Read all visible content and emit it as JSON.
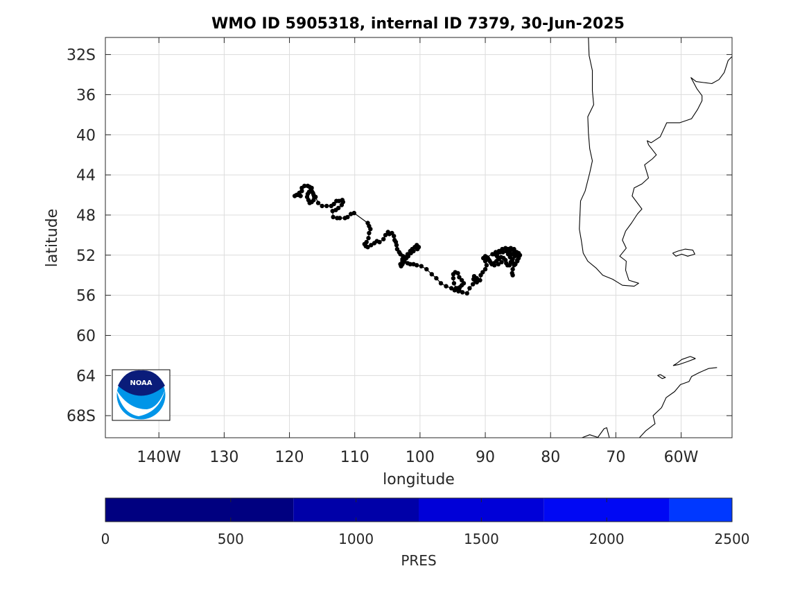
{
  "title": "WMO ID 5905318, internal ID 7379, 30-Jun-2025",
  "map": {
    "xlabel": "longitude",
    "ylabel": "latitude",
    "xlim": [
      -148.2,
      -52.2
    ],
    "ylim": [
      -70.2,
      -30.3
    ],
    "xticks": [
      {
        "value": -140,
        "label": "140W"
      },
      {
        "value": -130,
        "label": "130"
      },
      {
        "value": -120,
        "label": "120"
      },
      {
        "value": -110,
        "label": "110"
      },
      {
        "value": -100,
        "label": "100"
      },
      {
        "value": -90,
        "label": "90"
      },
      {
        "value": -80,
        "label": "80"
      },
      {
        "value": -70,
        "label": "70"
      },
      {
        "value": -60,
        "label": "60W"
      }
    ],
    "yticks": [
      {
        "value": -32,
        "label": "32S"
      },
      {
        "value": -36,
        "label": "36"
      },
      {
        "value": -40,
        "label": "40"
      },
      {
        "value": -44,
        "label": "44"
      },
      {
        "value": -48,
        "label": "48"
      },
      {
        "value": -52,
        "label": "52"
      },
      {
        "value": -56,
        "label": "56"
      },
      {
        "value": -60,
        "label": "60"
      },
      {
        "value": -64,
        "label": "64"
      },
      {
        "value": -68,
        "label": "68S"
      }
    ],
    "grid": true,
    "marker_color": "#000000",
    "logo_text": "NOAA",
    "coastlines": [
      [
        [
          -74.2,
          -30.3
        ],
        [
          -74.1,
          -32.1
        ],
        [
          -73.6,
          -33.6
        ],
        [
          -73.6,
          -35.6
        ],
        [
          -73.4,
          -37.0
        ],
        [
          -74.3,
          -38.2
        ],
        [
          -74.2,
          -39.8
        ],
        [
          -74.0,
          -41.4
        ],
        [
          -73.6,
          -42.6
        ],
        [
          -74.0,
          -43.8
        ],
        [
          -74.7,
          -45.6
        ],
        [
          -75.4,
          -46.6
        ],
        [
          -75.5,
          -48.0
        ],
        [
          -75.6,
          -49.4
        ],
        [
          -75.3,
          -50.5
        ],
        [
          -75.0,
          -51.8
        ],
        [
          -74.3,
          -52.6
        ],
        [
          -73.0,
          -53.3
        ],
        [
          -72.0,
          -54.0
        ],
        [
          -70.5,
          -54.4
        ],
        [
          -69.0,
          -55.0
        ],
        [
          -67.2,
          -55.1
        ],
        [
          -66.5,
          -54.8
        ],
        [
          -68.0,
          -54.5
        ],
        [
          -68.5,
          -53.5
        ],
        [
          -68.4,
          -52.6
        ],
        [
          -69.4,
          -52.1
        ],
        [
          -68.4,
          -51.3
        ],
        [
          -69.0,
          -50.5
        ],
        [
          -68.5,
          -49.6
        ],
        [
          -67.6,
          -48.8
        ],
        [
          -66.7,
          -47.9
        ],
        [
          -66.0,
          -47.4
        ],
        [
          -67.5,
          -46.1
        ],
        [
          -67.2,
          -45.3
        ],
        [
          -66.0,
          -44.9
        ],
        [
          -65.0,
          -44.3
        ],
        [
          -65.6,
          -43.0
        ],
        [
          -64.4,
          -42.4
        ],
        [
          -63.8,
          -42.0
        ],
        [
          -65.0,
          -41.0
        ],
        [
          -65.2,
          -40.6
        ],
        [
          -64.6,
          -40.8
        ],
        [
          -63.2,
          -40.2
        ],
        [
          -62.2,
          -38.8
        ],
        [
          -60.2,
          -38.8
        ],
        [
          -58.4,
          -38.4
        ],
        [
          -57.5,
          -37.5
        ],
        [
          -56.8,
          -36.6
        ],
        [
          -56.8,
          -36.1
        ],
        [
          -57.6,
          -35.4
        ],
        [
          -58.5,
          -34.3
        ],
        [
          -57.7,
          -34.7
        ],
        [
          -55.3,
          -34.9
        ],
        [
          -54.2,
          -34.5
        ],
        [
          -53.4,
          -33.8
        ],
        [
          -52.8,
          -32.6
        ],
        [
          -52.2,
          -32.2
        ]
      ],
      [
        [
          -61.3,
          -51.8
        ],
        [
          -60.5,
          -51.6
        ],
        [
          -59.4,
          -51.4
        ],
        [
          -58.2,
          -51.5
        ],
        [
          -57.9,
          -51.9
        ],
        [
          -59.0,
          -52.1
        ],
        [
          -59.9,
          -51.9
        ],
        [
          -60.8,
          -52.1
        ],
        [
          -61.3,
          -51.8
        ]
      ],
      [
        [
          -54.5,
          -63.2
        ],
        [
          -55.8,
          -63.3
        ],
        [
          -57.2,
          -63.7
        ],
        [
          -58.4,
          -64.1
        ],
        [
          -58.8,
          -64.6
        ],
        [
          -60.1,
          -64.9
        ],
        [
          -61.0,
          -65.6
        ],
        [
          -62.3,
          -66.2
        ],
        [
          -63.0,
          -67.2
        ],
        [
          -64.3,
          -68.0
        ],
        [
          -64.0,
          -68.8
        ],
        [
          -65.4,
          -69.5
        ],
        [
          -66.4,
          -70.2
        ]
      ],
      [
        [
          -57.8,
          -62.3
        ],
        [
          -58.6,
          -62.1
        ],
        [
          -59.9,
          -62.4
        ],
        [
          -60.7,
          -62.8
        ],
        [
          -61.2,
          -63.0
        ],
        [
          -60.3,
          -62.9
        ],
        [
          -59.0,
          -62.6
        ],
        [
          -57.8,
          -62.3
        ]
      ],
      [
        [
          -63.2,
          -63.9
        ],
        [
          -62.4,
          -64.2
        ],
        [
          -62.9,
          -64.3
        ],
        [
          -63.6,
          -64.0
        ],
        [
          -63.2,
          -63.9
        ]
      ],
      [
        [
          -71.0,
          -70.2
        ],
        [
          -71.4,
          -69.2
        ],
        [
          -71.8,
          -69.3
        ],
        [
          -72.8,
          -70.2
        ]
      ],
      [
        [
          -75.2,
          -70.2
        ],
        [
          -74.0,
          -69.9
        ],
        [
          -72.6,
          -70.2
        ]
      ]
    ]
  },
  "track": [
    [
      -119.2,
      -46.1
    ],
    [
      -118.9,
      -46.0
    ],
    [
      -118.6,
      -46.0
    ],
    [
      -118.3,
      -46.1
    ],
    [
      -118.5,
      -45.8
    ],
    [
      -118.1,
      -45.6
    ],
    [
      -118.1,
      -45.3
    ],
    [
      -117.7,
      -45.1
    ],
    [
      -117.2,
      -45.1
    ],
    [
      -116.9,
      -45.2
    ],
    [
      -116.6,
      -45.3
    ],
    [
      -116.6,
      -45.6
    ],
    [
      -116.4,
      -45.8
    ],
    [
      -116.3,
      -46.0
    ],
    [
      -116.2,
      -46.2
    ],
    [
      -116.3,
      -46.5
    ],
    [
      -116.6,
      -46.7
    ],
    [
      -116.9,
      -46.8
    ],
    [
      -117.1,
      -46.5
    ],
    [
      -117.3,
      -46.2
    ],
    [
      -117.2,
      -45.9
    ],
    [
      -117.0,
      -45.7
    ],
    [
      -116.7,
      -45.5
    ],
    [
      -116.0,
      -46.2
    ],
    [
      -115.6,
      -46.8
    ],
    [
      -115.0,
      -47.1
    ],
    [
      -114.3,
      -47.1
    ],
    [
      -113.6,
      -47.1
    ],
    [
      -113.2,
      -46.9
    ],
    [
      -112.8,
      -46.6
    ],
    [
      -112.4,
      -46.6
    ],
    [
      -111.9,
      -46.5
    ],
    [
      -111.8,
      -46.7
    ],
    [
      -112.0,
      -47.0
    ],
    [
      -112.5,
      -47.3
    ],
    [
      -112.9,
      -47.5
    ],
    [
      -113.4,
      -47.6
    ],
    [
      -113.3,
      -48.2
    ],
    [
      -112.7,
      -48.3
    ],
    [
      -112.3,
      -48.3
    ],
    [
      -111.5,
      -48.3
    ],
    [
      -111.1,
      -48.2
    ],
    [
      -110.6,
      -47.9
    ],
    [
      -110.1,
      -47.8
    ],
    [
      -108.0,
      -48.8
    ],
    [
      -107.8,
      -49.1
    ],
    [
      -107.6,
      -49.4
    ],
    [
      -107.8,
      -49.8
    ],
    [
      -107.9,
      -50.3
    ],
    [
      -108.2,
      -50.7
    ],
    [
      -108.5,
      -50.9
    ],
    [
      -108.3,
      -51.1
    ],
    [
      -108.0,
      -51.2
    ],
    [
      -107.5,
      -51.0
    ],
    [
      -107.0,
      -50.8
    ],
    [
      -106.6,
      -50.6
    ],
    [
      -106.2,
      -50.7
    ],
    [
      -105.6,
      -50.4
    ],
    [
      -105.3,
      -50.0
    ],
    [
      -104.9,
      -49.7
    ],
    [
      -104.7,
      -49.9
    ],
    [
      -104.3,
      -49.8
    ],
    [
      -104.0,
      -50.1
    ],
    [
      -103.9,
      -50.5
    ],
    [
      -103.7,
      -50.7
    ],
    [
      -103.6,
      -51.0
    ],
    [
      -103.5,
      -51.4
    ],
    [
      -103.2,
      -51.7
    ],
    [
      -103.0,
      -51.9
    ],
    [
      -102.6,
      -52.1
    ],
    [
      -102.7,
      -52.4
    ],
    [
      -102.4,
      -52.5
    ],
    [
      -102.2,
      -52.2
    ],
    [
      -101.9,
      -51.9
    ],
    [
      -101.5,
      -51.6
    ],
    [
      -101.2,
      -51.4
    ],
    [
      -100.8,
      -51.2
    ],
    [
      -100.5,
      -51.0
    ],
    [
      -100.2,
      -51.2
    ],
    [
      -100.4,
      -51.4
    ],
    [
      -101.0,
      -51.6
    ],
    [
      -101.4,
      -51.8
    ],
    [
      -101.8,
      -52.1
    ],
    [
      -102.1,
      -52.3
    ],
    [
      -102.4,
      -52.6
    ],
    [
      -102.7,
      -52.9
    ],
    [
      -102.9,
      -53.1
    ],
    [
      -103.0,
      -52.9
    ],
    [
      -102.7,
      -52.6
    ],
    [
      -102.5,
      -52.7
    ],
    [
      -101.9,
      -52.8
    ],
    [
      -101.5,
      -52.9
    ],
    [
      -101.0,
      -52.9
    ],
    [
      -100.5,
      -53.0
    ],
    [
      -99.8,
      -53.1
    ],
    [
      -99.0,
      -53.4
    ],
    [
      -98.2,
      -53.9
    ],
    [
      -97.5,
      -54.3
    ],
    [
      -96.8,
      -54.8
    ],
    [
      -96.0,
      -55.1
    ],
    [
      -95.2,
      -55.3
    ],
    [
      -94.5,
      -55.4
    ],
    [
      -94.0,
      -55.5
    ],
    [
      -94.5,
      -55.3
    ],
    [
      -94.8,
      -54.8
    ],
    [
      -94.9,
      -54.3
    ],
    [
      -94.9,
      -53.9
    ],
    [
      -94.6,
      -53.7
    ],
    [
      -94.2,
      -53.8
    ],
    [
      -94.0,
      -54.2
    ],
    [
      -93.6,
      -54.5
    ],
    [
      -93.3,
      -54.8
    ],
    [
      -93.6,
      -55.0
    ],
    [
      -93.9,
      -55.2
    ],
    [
      -94.3,
      -55.3
    ],
    [
      -94.7,
      -55.5
    ],
    [
      -94.1,
      -55.6
    ],
    [
      -93.5,
      -55.7
    ],
    [
      -92.8,
      -55.8
    ],
    [
      -92.4,
      -55.3
    ],
    [
      -91.9,
      -54.9
    ],
    [
      -91.5,
      -54.6
    ],
    [
      -91.3,
      -54.3
    ],
    [
      -91.7,
      -54.1
    ],
    [
      -91.8,
      -54.4
    ],
    [
      -91.3,
      -54.7
    ],
    [
      -90.8,
      -54.5
    ],
    [
      -90.7,
      -54.0
    ],
    [
      -90.4,
      -53.7
    ],
    [
      -90.0,
      -53.4
    ],
    [
      -89.8,
      -53.0
    ],
    [
      -90.0,
      -52.6
    ],
    [
      -90.3,
      -52.3
    ],
    [
      -90.0,
      -52.1
    ],
    [
      -89.6,
      -52.3
    ],
    [
      -89.3,
      -52.6
    ],
    [
      -89.0,
      -52.9
    ],
    [
      -88.6,
      -53.0
    ],
    [
      -88.0,
      -52.9
    ],
    [
      -87.5,
      -52.7
    ],
    [
      -87.9,
      -52.4
    ],
    [
      -88.2,
      -52.1
    ],
    [
      -88.6,
      -51.9
    ],
    [
      -88.1,
      -51.8
    ],
    [
      -87.7,
      -51.7
    ],
    [
      -87.3,
      -51.7
    ],
    [
      -86.8,
      -51.6
    ],
    [
      -86.5,
      -51.9
    ],
    [
      -86.2,
      -52.2
    ],
    [
      -85.9,
      -52.5
    ],
    [
      -85.7,
      -52.8
    ],
    [
      -85.4,
      -52.9
    ],
    [
      -85.1,
      -52.6
    ],
    [
      -84.9,
      -52.3
    ],
    [
      -84.7,
      -52.0
    ],
    [
      -84.9,
      -51.8
    ],
    [
      -85.2,
      -51.7
    ],
    [
      -85.6,
      -51.8
    ],
    [
      -86.0,
      -51.9
    ],
    [
      -86.2,
      -51.6
    ],
    [
      -86.0,
      -51.4
    ],
    [
      -85.6,
      -51.4
    ],
    [
      -85.3,
      -51.7
    ],
    [
      -85.5,
      -52.1
    ],
    [
      -85.8,
      -52.4
    ],
    [
      -86.1,
      -52.7
    ],
    [
      -86.3,
      -53.0
    ],
    [
      -86.6,
      -53.0
    ],
    [
      -86.8,
      -52.8
    ],
    [
      -86.9,
      -52.5
    ],
    [
      -87.2,
      -52.3
    ],
    [
      -87.6,
      -52.2
    ],
    [
      -88.0,
      -52.3
    ],
    [
      -88.3,
      -52.6
    ],
    [
      -88.7,
      -52.8
    ],
    [
      -89.1,
      -52.8
    ],
    [
      -89.4,
      -52.5
    ],
    [
      -89.8,
      -52.2
    ],
    [
      -88.9,
      -51.9
    ],
    [
      -88.4,
      -51.7
    ],
    [
      -87.9,
      -51.6
    ],
    [
      -87.4,
      -51.4
    ],
    [
      -86.9,
      -51.3
    ],
    [
      -86.5,
      -51.4
    ],
    [
      -86.1,
      -51.3
    ],
    [
      -85.6,
      -51.5
    ],
    [
      -85.2,
      -51.9
    ],
    [
      -84.9,
      -52.2
    ],
    [
      -85.1,
      -52.5
    ],
    [
      -85.6,
      -53.0
    ],
    [
      -85.8,
      -53.4
    ],
    [
      -85.9,
      -53.8
    ],
    [
      -85.8,
      -54.0
    ]
  ],
  "colorbar": {
    "label": "PRES",
    "min": 0,
    "max": 2500,
    "ticks": [
      {
        "value": 0,
        "label": "0"
      },
      {
        "value": 500,
        "label": "500"
      },
      {
        "value": 1000,
        "label": "1000"
      },
      {
        "value": 1500,
        "label": "1500"
      },
      {
        "value": 2000,
        "label": "2000"
      },
      {
        "value": 2500,
        "label": "2500"
      }
    ],
    "segments": [
      {
        "from": 0,
        "to": 750,
        "color": "#000080"
      },
      {
        "from": 750,
        "to": 1250,
        "color": "#0000A8"
      },
      {
        "from": 1250,
        "to": 1750,
        "color": "#0000D8"
      },
      {
        "from": 1750,
        "to": 2250,
        "color": "#0008F4"
      },
      {
        "from": 2250,
        "to": 2500,
        "color": "#0038FF"
      }
    ]
  }
}
